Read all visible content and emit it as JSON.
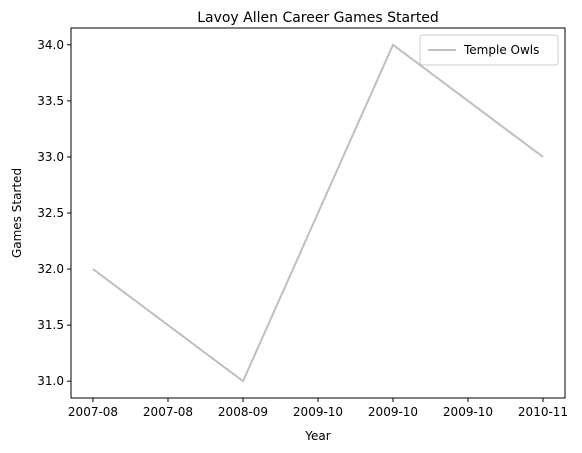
{
  "chart_data": {
    "type": "line",
    "title": "Lavoy Allen Career Games Started",
    "xlabel": "Year",
    "ylabel": "Games Started",
    "x": [
      "2007-08",
      "2008-09",
      "2009-10",
      "2010-11"
    ],
    "x_tick_labels": [
      "2007-08",
      "2007-08",
      "2008-09",
      "2009-10",
      "2009-10",
      "2009-10",
      "2010-11"
    ],
    "y_ticks": [
      "31.0",
      "31.5",
      "32.0",
      "32.5",
      "33.0",
      "33.5",
      "34.0"
    ],
    "ylim": [
      30.85,
      34.15
    ],
    "series": [
      {
        "name": "Temple Owls",
        "values": [
          32,
          31,
          34,
          33
        ],
        "color": "#bfbfbf"
      }
    ],
    "grid": false,
    "legend": "upper right"
  }
}
